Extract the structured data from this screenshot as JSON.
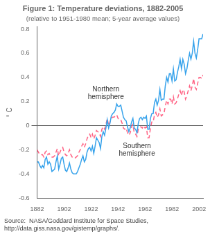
{
  "chart_data": {
    "type": "line",
    "title": "Figure 1: Temperature deviations, 1882-2005",
    "subtitle": "(relative to 1951-1980 mean; 5-year average values)",
    "y_label": "° C",
    "source": "Source:  NASA/Goddard Institute for Space Studies,\nhttp://data.giss.nasa.gov/gistemp/graphs/.",
    "x": [
      1882,
      1883,
      1884,
      1885,
      1886,
      1887,
      1888,
      1889,
      1890,
      1891,
      1892,
      1893,
      1894,
      1895,
      1896,
      1897,
      1898,
      1899,
      1900,
      1901,
      1902,
      1903,
      1904,
      1905,
      1906,
      1907,
      1908,
      1909,
      1910,
      1911,
      1912,
      1913,
      1914,
      1915,
      1916,
      1917,
      1918,
      1919,
      1920,
      1921,
      1922,
      1923,
      1924,
      1925,
      1926,
      1927,
      1928,
      1929,
      1930,
      1931,
      1932,
      1933,
      1934,
      1935,
      1936,
      1937,
      1938,
      1939,
      1940,
      1941,
      1942,
      1943,
      1944,
      1945,
      1946,
      1947,
      1948,
      1949,
      1950,
      1951,
      1952,
      1953,
      1954,
      1955,
      1956,
      1957,
      1958,
      1959,
      1960,
      1961,
      1962,
      1963,
      1964,
      1965,
      1966,
      1967,
      1968,
      1969,
      1970,
      1971,
      1972,
      1973,
      1974,
      1975,
      1976,
      1977,
      1978,
      1979,
      1980,
      1981,
      1982,
      1983,
      1984,
      1985,
      1986,
      1987,
      1988,
      1989,
      1990,
      1991,
      1992,
      1993,
      1994,
      1995,
      1996,
      1997,
      1998,
      1999,
      2000,
      2001,
      2002,
      2003,
      2004,
      2005
    ],
    "series": [
      {
        "line_style": "solid",
        "values": [
          -0.3,
          -0.3,
          -0.33,
          -0.35,
          -0.33,
          -0.35,
          -0.28,
          -0.26,
          -0.32,
          -0.3,
          -0.32,
          -0.38,
          -0.37,
          -0.36,
          -0.3,
          -0.25,
          -0.36,
          -0.32,
          -0.27,
          -0.26,
          -0.32,
          -0.37,
          -0.38,
          -0.35,
          -0.31,
          -0.36,
          -0.39,
          -0.4,
          -0.4,
          -0.4,
          -0.38,
          -0.35,
          -0.32,
          -0.28,
          -0.25,
          -0.3,
          -0.28,
          -0.22,
          -0.19,
          -0.18,
          -0.21,
          -0.17,
          -0.23,
          -0.17,
          -0.1,
          -0.12,
          -0.14,
          -0.19,
          -0.09,
          -0.05,
          -0.08,
          -0.02,
          0.05,
          -0.02,
          0.02,
          0.08,
          0.1,
          0.11,
          0.13,
          0.18,
          0.16,
          0.16,
          0.17,
          0.12,
          0.07,
          0.05,
          0.04,
          -0.01,
          -0.05,
          -0.02,
          0.03,
          0.06,
          -0.02,
          -0.03,
          -0.06,
          0.02,
          0.06,
          0.07,
          0.05,
          0.07,
          0.06,
          0.08,
          -0.03,
          -0.03,
          0.06,
          0.1,
          0.1,
          0.19,
          0.22,
          0.17,
          0.21,
          0.3,
          0.21,
          0.22,
          0.22,
          0.33,
          0.4,
          0.36,
          0.43,
          0.43,
          0.37,
          0.47,
          0.37,
          0.38,
          0.44,
          0.49,
          0.55,
          0.47,
          0.55,
          0.51,
          0.43,
          0.47,
          0.54,
          0.6,
          0.55,
          0.6,
          0.7,
          0.6,
          0.56,
          0.63,
          0.72,
          0.72,
          0.72,
          0.76
        ]
      },
      {
        "line_style": "dashed",
        "values": [
          -0.2,
          -0.22,
          -0.24,
          -0.24,
          -0.24,
          -0.26,
          -0.22,
          -0.21,
          -0.24,
          -0.23,
          -0.25,
          -0.26,
          -0.26,
          -0.25,
          -0.22,
          -0.19,
          -0.25,
          -0.22,
          -0.19,
          -0.18,
          -0.22,
          -0.24,
          -0.25,
          -0.23,
          -0.2,
          -0.24,
          -0.26,
          -0.27,
          -0.27,
          -0.26,
          -0.25,
          -0.22,
          -0.2,
          -0.17,
          -0.15,
          -0.18,
          -0.15,
          -0.11,
          -0.08,
          -0.07,
          -0.1,
          -0.07,
          -0.11,
          -0.08,
          -0.04,
          -0.05,
          -0.06,
          -0.09,
          -0.03,
          -0.01,
          -0.03,
          0.01,
          0.06,
          0.0,
          0.03,
          0.06,
          0.07,
          0.07,
          0.08,
          0.09,
          0.06,
          0.05,
          0.05,
          0.02,
          -0.02,
          -0.03,
          -0.02,
          -0.06,
          -0.08,
          -0.06,
          -0.01,
          0.01,
          -0.06,
          -0.07,
          -0.09,
          -0.03,
          -0.01,
          -0.01,
          -0.02,
          0.0,
          -0.02,
          -0.01,
          -0.1,
          -0.1,
          -0.02,
          0.03,
          0.03,
          0.09,
          0.11,
          0.07,
          0.09,
          0.14,
          0.08,
          0.09,
          0.1,
          0.16,
          0.21,
          0.18,
          0.22,
          0.22,
          0.18,
          0.24,
          0.18,
          0.19,
          0.22,
          0.26,
          0.29,
          0.25,
          0.3,
          0.28,
          0.22,
          0.25,
          0.29,
          0.33,
          0.29,
          0.33,
          0.39,
          0.32,
          0.3,
          0.35,
          0.4,
          0.4,
          0.39,
          0.42
        ]
      }
    ],
    "annotations": [
      {
        "text": "Northern\nhemisphere",
        "x": 1933,
        "y": 0.27
      },
      {
        "text": "Southern\nhemisphere",
        "x": 1956,
        "y": -0.2
      }
    ],
    "hlines": [
      0
    ],
    "xlim": [
      1882,
      2005
    ],
    "ylim": [
      -0.6,
      0.82
    ],
    "xticks": [
      1882,
      1902,
      1922,
      1942,
      1962,
      1982,
      2002
    ],
    "yticks": [
      -0.6,
      -0.4,
      -0.2,
      0,
      0.2,
      0.4,
      0.6,
      0.8
    ],
    "grid": false
  }
}
